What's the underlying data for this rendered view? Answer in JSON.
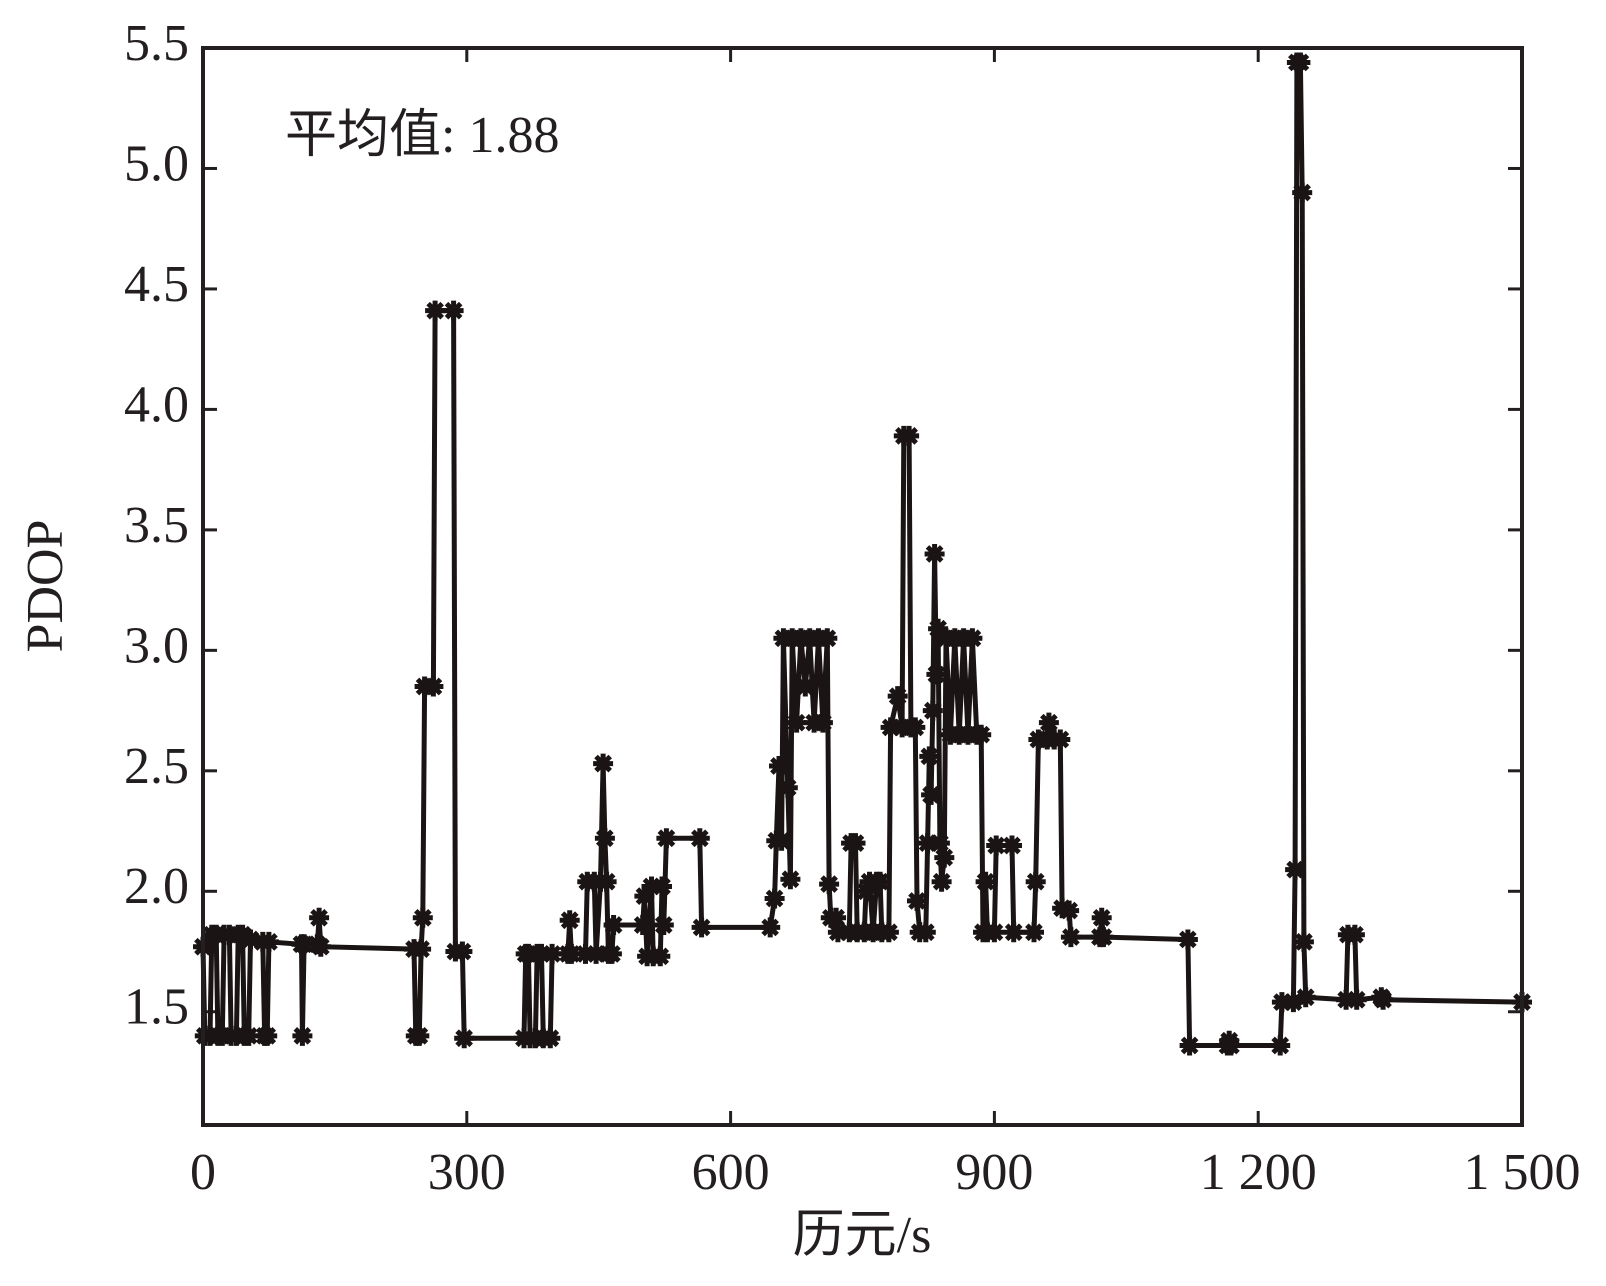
{
  "chart_data": {
    "type": "line",
    "annotation": "平均值: 1.88",
    "xlabel": "历元/s",
    "ylabel": "PDOP",
    "color": "#1a1414",
    "marker": "asterisk",
    "xlim": [
      0,
      1500
    ],
    "ylim": [
      1.03,
      5.5
    ],
    "xticks": [
      0,
      300,
      600,
      900,
      {
        "value": 1200,
        "label": "1 200"
      },
      {
        "value": 1500,
        "label": "1 500"
      }
    ],
    "yticks": [
      1.5,
      {
        "value": 2,
        "label": "2.0"
      },
      2.5,
      {
        "value": 3,
        "label": "3.0"
      },
      3.5,
      {
        "value": 4,
        "label": "4.0"
      },
      4.5,
      {
        "value": 5,
        "label": "5.0"
      },
      5.5
    ],
    "x": [
      0,
      2,
      8,
      10,
      15,
      17,
      22,
      24,
      30,
      32,
      38,
      40,
      45,
      47,
      52,
      54,
      68,
      70,
      73,
      75,
      112,
      113,
      115,
      130,
      132,
      134,
      240,
      242,
      246,
      248,
      250,
      252,
      262,
      264,
      285,
      287,
      295,
      297,
      365,
      367,
      370,
      372,
      378,
      380,
      385,
      387,
      395,
      397,
      415,
      417,
      419,
      435,
      437,
      445,
      447,
      452,
      455,
      457,
      459,
      461,
      465,
      467,
      500,
      502,
      505,
      510,
      512,
      520,
      522,
      524,
      527,
      565,
      567,
      645,
      650,
      652,
      655,
      658,
      660,
      665,
      668,
      670,
      675,
      680,
      685,
      690,
      695,
      700,
      705,
      710,
      712,
      714,
      720,
      722,
      735,
      737,
      742,
      744,
      752,
      754,
      758,
      762,
      766,
      770,
      772,
      780,
      782,
      790,
      795,
      797,
      803,
      805,
      810,
      812,
      815,
      822,
      824,
      826,
      828,
      830,
      832,
      834,
      836,
      838,
      840,
      843,
      845,
      850,
      855,
      860,
      865,
      870,
      875,
      880,
      885,
      887,
      890,
      892,
      900,
      902,
      920,
      922,
      945,
      947,
      950,
      960,
      962,
      968,
      975,
      977,
      985,
      987,
      1020,
      1022,
      1024,
      1120,
      1122,
      1165,
      1167,
      1169,
      1225,
      1227,
      1240,
      1242,
      1244,
      1248,
      1250,
      1252,
      1254,
      1300,
      1302,
      1310,
      1312,
      1340,
      1342,
      1500
    ],
    "values": [
      1.77,
      1.4,
      1.4,
      1.82,
      1.82,
      1.4,
      1.4,
      1.82,
      1.82,
      1.4,
      1.4,
      1.82,
      1.82,
      1.4,
      1.4,
      1.8,
      1.79,
      1.4,
      1.4,
      1.79,
      1.78,
      1.4,
      1.78,
      1.78,
      1.89,
      1.77,
      1.76,
      1.4,
      1.4,
      1.76,
      1.89,
      2.85,
      2.85,
      4.41,
      4.41,
      1.75,
      1.75,
      1.39,
      1.39,
      1.74,
      1.74,
      1.39,
      1.39,
      1.74,
      1.74,
      1.39,
      1.39,
      1.74,
      1.74,
      1.88,
      1.74,
      1.74,
      2.04,
      2.04,
      1.74,
      2.04,
      2.53,
      2.22,
      2.04,
      1.74,
      1.74,
      1.86,
      1.86,
      1.98,
      1.73,
      2.02,
      1.73,
      1.73,
      2.02,
      1.86,
      2.22,
      2.22,
      1.85,
      1.85,
      1.97,
      2.21,
      2.52,
      2.21,
      3.05,
      2.43,
      2.05,
      3.05,
      2.7,
      3.05,
      2.85,
      3.05,
      2.7,
      3.05,
      2.7,
      3.05,
      2.03,
      1.89,
      1.89,
      1.83,
      1.83,
      2.2,
      2.2,
      1.83,
      1.83,
      2.0,
      2.04,
      1.83,
      2.04,
      2.04,
      1.83,
      1.83,
      2.68,
      2.81,
      2.68,
      3.89,
      3.89,
      2.68,
      2.68,
      1.96,
      1.83,
      1.83,
      2.2,
      2.56,
      2.4,
      2.75,
      3.4,
      2.9,
      3.09,
      2.2,
      2.04,
      2.14,
      3.05,
      2.65,
      3.05,
      2.65,
      3.05,
      2.65,
      3.05,
      2.65,
      2.65,
      1.83,
      2.04,
      1.83,
      1.83,
      2.19,
      2.19,
      1.83,
      1.83,
      2.04,
      2.63,
      2.63,
      2.7,
      2.63,
      2.63,
      1.93,
      1.92,
      1.81,
      1.81,
      1.89,
      1.81,
      1.8,
      1.36,
      1.36,
      1.38,
      1.36,
      1.36,
      1.54,
      1.54,
      2.09,
      5.44,
      5.44,
      4.9,
      1.79,
      1.56,
      1.55,
      1.82,
      1.82,
      1.55,
      1.56,
      1.55,
      1.54
    ]
  }
}
